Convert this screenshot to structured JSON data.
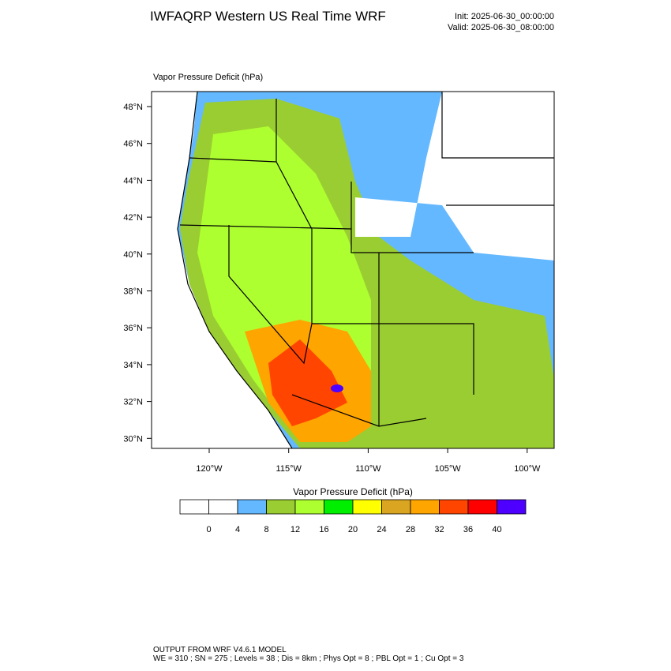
{
  "header": {
    "title": "IWFAQRP Western US Real Time WRF",
    "init": "Init: 2025-06-30_00:00:00",
    "valid": "Valid: 2025-06-30_08:00:00"
  },
  "map": {
    "field_label": "Vapor Pressure Deficit   (hPa)",
    "lat_labels": [
      "48°N",
      "46°N",
      "44°N",
      "42°N",
      "40°N",
      "38°N",
      "36°N",
      "34°N",
      "32°N",
      "30°N"
    ],
    "lon_labels": [
      "120°W",
      "115°W",
      "110°W",
      "105°W",
      "100°W"
    ]
  },
  "colorbar": {
    "title": "Vapor Pressure Deficit  (hPa)",
    "colors": [
      "#ffffff",
      "#ffffff",
      "#63b8ff",
      "#9acd32",
      "#adff2f",
      "#00ee00",
      "#ffff00",
      "#daa520",
      "#ffa500",
      "#ff4500",
      "#ff0000",
      "#4d00ff"
    ],
    "ticks": [
      0,
      4,
      8,
      12,
      16,
      20,
      24,
      28,
      32,
      36,
      40
    ]
  },
  "footer": {
    "line1": "OUTPUT FROM WRF V4.6.1 MODEL",
    "line2": "WE = 310 ; SN = 275 ; Levels = 38 ; Dis = 8km ; Phys Opt = 8 ; PBL Opt = 1 ; Cu Opt = 3"
  }
}
